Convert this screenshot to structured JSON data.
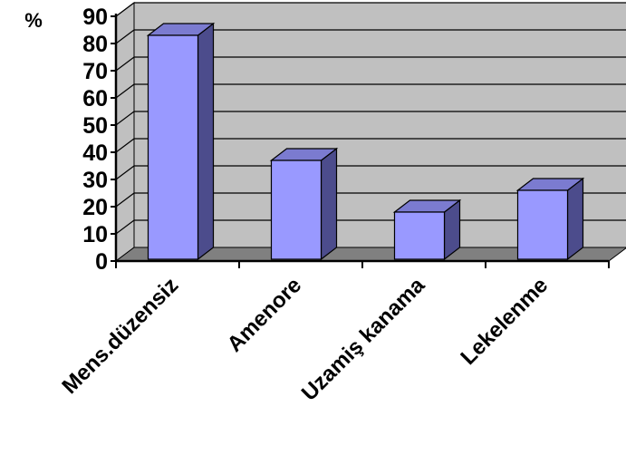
{
  "chart_data": {
    "type": "bar",
    "style": "3d-column",
    "ylabel": "%",
    "categories": [
      "Mens.düzensiz",
      "Amenore",
      "Uzamiş kanama",
      "Lekelenme"
    ],
    "values": [
      83,
      37,
      18,
      26
    ],
    "ylim": [
      0,
      90
    ],
    "yticks": [
      0,
      10,
      20,
      30,
      40,
      50,
      60,
      70,
      80,
      90
    ],
    "grid": true,
    "legend": "none",
    "colors": {
      "bar_front": "#9999ff",
      "bar_side": "#4c4c8c",
      "bar_top": "#7b7bd0",
      "wall": "#c0c0c0",
      "floor": "#808080",
      "gridline": "#000000"
    }
  }
}
